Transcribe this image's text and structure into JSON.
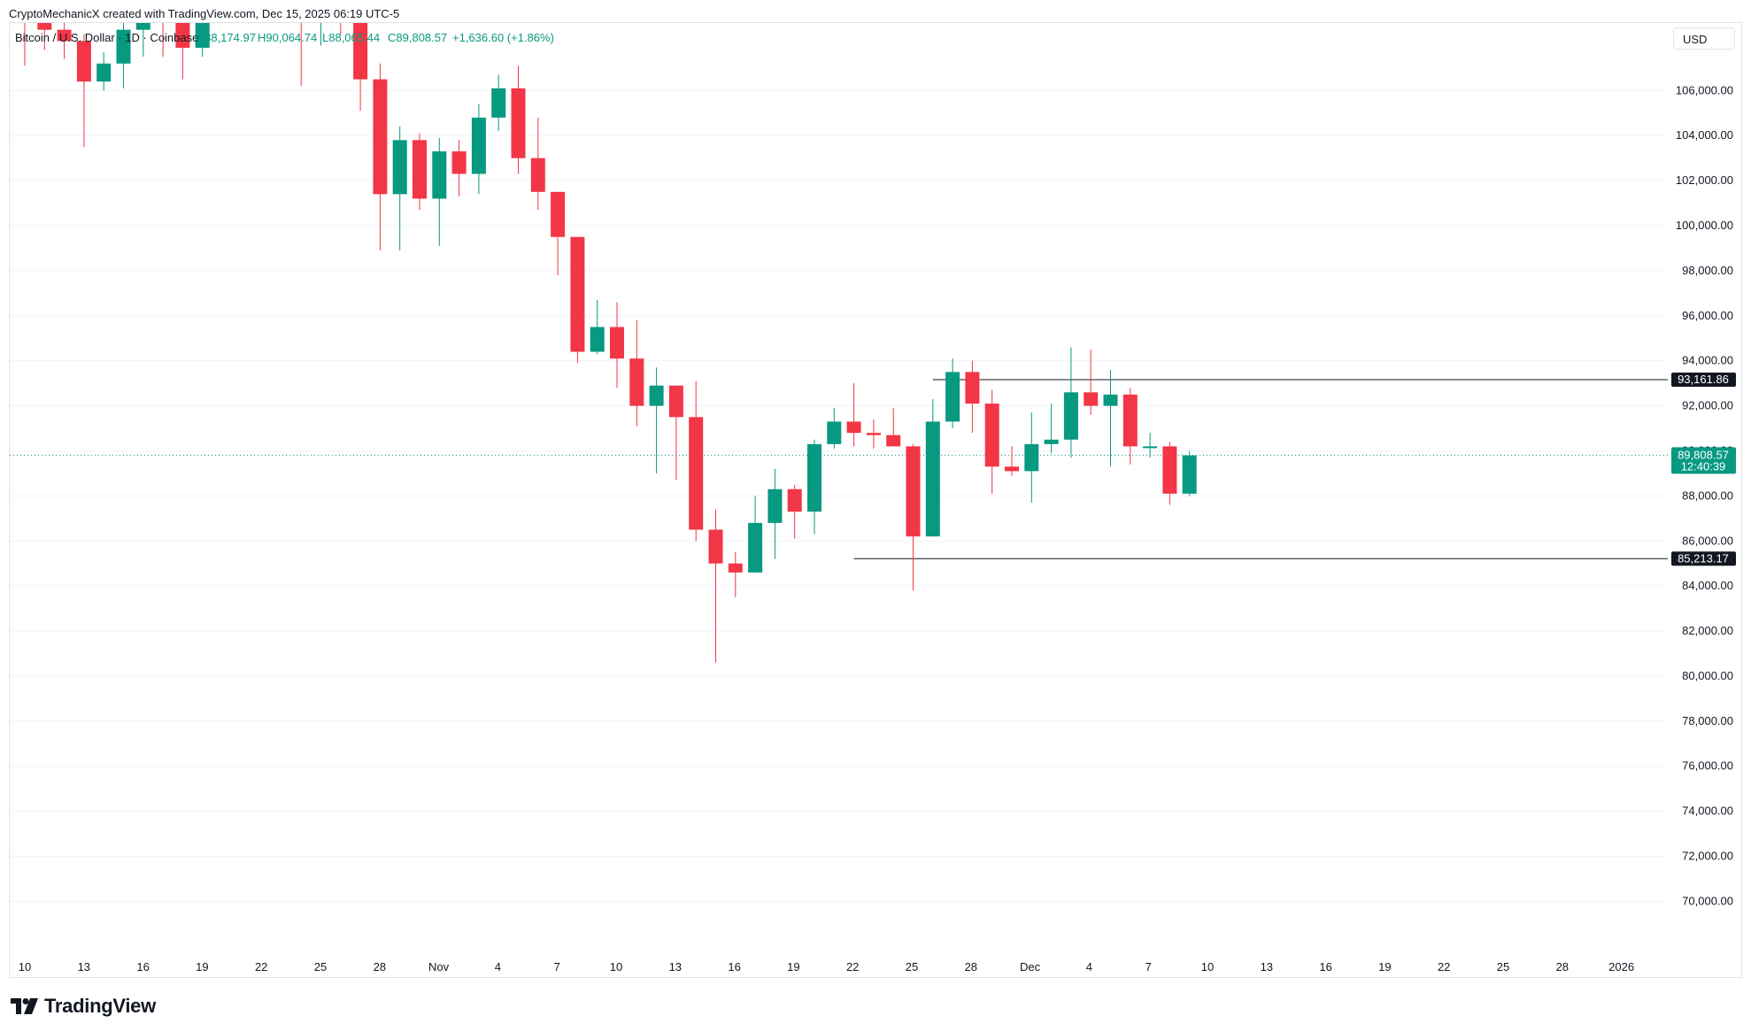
{
  "header": {
    "created_by": "CryptoMechanicX created with TradingView.com, Dec 15, 2025 06:19 UTC-5",
    "symbol": "Bitcoin / U.S. Dollar · 1D · Coinbase",
    "open": "O88,174.97",
    "high": "H90,064.74",
    "low": "L88,065.44",
    "close": "C89,808.57",
    "change": "+1,636.60 (+1.86%)",
    "currency": "USD"
  },
  "footer": {
    "brand": "TradingView",
    "logo_icon": "tradingview-logo-icon"
  },
  "colors": {
    "up": "#089981",
    "down": "#f23645",
    "grid": "#f0f3fa",
    "axis_text": "#131722"
  },
  "chart_data": {
    "type": "candlestick",
    "title": "Bitcoin / U.S. Dollar · 1D · Coinbase",
    "ylim": [
      67500,
      109000
    ],
    "y_ticks": [
      70000,
      72000,
      74000,
      76000,
      78000,
      80000,
      82000,
      84000,
      86000,
      88000,
      90000,
      92000,
      94000,
      96000,
      98000,
      100000,
      102000,
      104000,
      106000
    ],
    "y_tick_labels": [
      "70,000.00",
      "72,000.00",
      "74,000.00",
      "76,000.00",
      "78,000.00",
      "80,000.00",
      "82,000.00",
      "84,000.00",
      "86,000.00",
      "88,000.00",
      "90,000.00",
      "92,000.00",
      "94,000.00",
      "96,000.00",
      "98,000.00",
      "100,000.00",
      "102,000.00",
      "104,000.00",
      "106,000.00"
    ],
    "x_tick_labels": [
      "10",
      "13",
      "16",
      "19",
      "22",
      "25",
      "28",
      "Nov",
      "4",
      "7",
      "10",
      "13",
      "16",
      "19",
      "22",
      "25",
      "28",
      "Dec",
      "4",
      "7",
      "10",
      "13",
      "16",
      "19",
      "22",
      "25",
      "28",
      "2026"
    ],
    "candles": [
      {
        "o": 110500,
        "h": 111500,
        "l": 107100,
        "c": 109200
      },
      {
        "o": 111500,
        "h": 112500,
        "l": 107800,
        "c": 108700
      },
      {
        "o": 108700,
        "h": 109500,
        "l": 107400,
        "c": 108200
      },
      {
        "o": 108200,
        "h": 108500,
        "l": 103500,
        "c": 106400
      },
      {
        "o": 106400,
        "h": 107700,
        "l": 106000,
        "c": 107200
      },
      {
        "o": 107200,
        "h": 111000,
        "l": 106100,
        "c": 108700
      },
      {
        "o": 108700,
        "h": 111800,
        "l": 107500,
        "c": 111100
      },
      {
        "o": 111100,
        "h": 112000,
        "l": 107500,
        "c": 110100
      },
      {
        "o": 110100,
        "h": 110500,
        "l": 106500,
        "c": 107900
      },
      {
        "o": 107900,
        "h": 110200,
        "l": 107500,
        "c": 110000
      },
      {
        "o": 110000,
        "h": 112000,
        "l": 109000,
        "c": 111500
      },
      {
        "o": 111500,
        "h": 112500,
        "l": 109500,
        "c": 110800
      },
      {
        "o": 110800,
        "h": 111500,
        "l": 109500,
        "c": 110400
      },
      {
        "o": 110400,
        "h": 111200,
        "l": 109000,
        "c": 110200
      },
      {
        "o": 110200,
        "h": 111000,
        "l": 106200,
        "c": 109100
      },
      {
        "o": 109100,
        "h": 111000,
        "l": 108000,
        "c": 110400
      },
      {
        "o": 110400,
        "h": 111100,
        "l": 108500,
        "c": 109500
      },
      {
        "o": 109500,
        "h": 111000,
        "l": 105100,
        "c": 106500
      },
      {
        "o": 106500,
        "h": 107200,
        "l": 98900,
        "c": 101400
      },
      {
        "o": 101400,
        "h": 104400,
        "l": 98900,
        "c": 103800
      },
      {
        "o": 103800,
        "h": 104100,
        "l": 100700,
        "c": 101200
      },
      {
        "o": 101200,
        "h": 103900,
        "l": 99100,
        "c": 103300
      },
      {
        "o": 103300,
        "h": 103800,
        "l": 101300,
        "c": 102300
      },
      {
        "o": 102300,
        "h": 105400,
        "l": 101400,
        "c": 104800
      },
      {
        "o": 104800,
        "h": 106700,
        "l": 104200,
        "c": 106100
      },
      {
        "o": 106100,
        "h": 107100,
        "l": 102300,
        "c": 103000
      },
      {
        "o": 103000,
        "h": 104800,
        "l": 100700,
        "c": 101500
      },
      {
        "o": 101500,
        "h": 101500,
        "l": 97800,
        "c": 99500
      },
      {
        "o": 99500,
        "h": 99500,
        "l": 93900,
        "c": 94400
      },
      {
        "o": 94400,
        "h": 96700,
        "l": 94300,
        "c": 95500
      },
      {
        "o": 95500,
        "h": 96600,
        "l": 92800,
        "c": 94100
      },
      {
        "o": 94100,
        "h": 95800,
        "l": 91100,
        "c": 92000
      },
      {
        "o": 92000,
        "h": 93700,
        "l": 89000,
        "c": 92900
      },
      {
        "o": 92900,
        "h": 92900,
        "l": 88700,
        "c": 91500
      },
      {
        "o": 91500,
        "h": 93100,
        "l": 86000,
        "c": 86500
      },
      {
        "o": 86500,
        "h": 87400,
        "l": 80600,
        "c": 85000
      },
      {
        "o": 85000,
        "h": 85500,
        "l": 83500,
        "c": 84600
      },
      {
        "o": 84600,
        "h": 88000,
        "l": 84600,
        "c": 86800
      },
      {
        "o": 86800,
        "h": 89200,
        "l": 85200,
        "c": 88300
      },
      {
        "o": 88300,
        "h": 88500,
        "l": 86100,
        "c": 87300
      },
      {
        "o": 87300,
        "h": 90500,
        "l": 86300,
        "c": 90300
      },
      {
        "o": 90300,
        "h": 91900,
        "l": 90100,
        "c": 91300
      },
      {
        "o": 91300,
        "h": 93000,
        "l": 90200,
        "c": 90800
      },
      {
        "o": 90800,
        "h": 91400,
        "l": 90100,
        "c": 90700
      },
      {
        "o": 90700,
        "h": 91900,
        "l": 90300,
        "c": 90200
      },
      {
        "o": 90200,
        "h": 90300,
        "l": 83800,
        "c": 86200
      },
      {
        "o": 86200,
        "h": 92300,
        "l": 86200,
        "c": 91300
      },
      {
        "o": 91300,
        "h": 94100,
        "l": 91000,
        "c": 93500
      },
      {
        "o": 93500,
        "h": 94000,
        "l": 90800,
        "c": 92100
      },
      {
        "o": 92100,
        "h": 92700,
        "l": 88100,
        "c": 89300
      },
      {
        "o": 89300,
        "h": 90200,
        "l": 88900,
        "c": 89100
      },
      {
        "o": 89100,
        "h": 91700,
        "l": 87700,
        "c": 90300
      },
      {
        "o": 90300,
        "h": 92100,
        "l": 89900,
        "c": 90500
      },
      {
        "o": 90500,
        "h": 94600,
        "l": 89700,
        "c": 92600
      },
      {
        "o": 92600,
        "h": 94500,
        "l": 91600,
        "c": 92000
      },
      {
        "o": 92000,
        "h": 93600,
        "l": 89300,
        "c": 92500
      },
      {
        "o": 92500,
        "h": 92800,
        "l": 89400,
        "c": 90200
      },
      {
        "o": 90200,
        "h": 90800,
        "l": 89700,
        "c": 90200
      },
      {
        "o": 90200,
        "h": 90400,
        "l": 87600,
        "c": 88100
      },
      {
        "o": 88100,
        "h": 90000,
        "l": 88000,
        "c": 89800
      }
    ],
    "levels": [
      {
        "value": 93161.86,
        "label": "93,161.86",
        "start_index": 46
      },
      {
        "value": 85213.17,
        "label": "85,213.17",
        "start_index": 42
      }
    ],
    "last_price": {
      "value": 89808.57,
      "label": "89,808.57",
      "countdown": "12:40:39"
    }
  }
}
